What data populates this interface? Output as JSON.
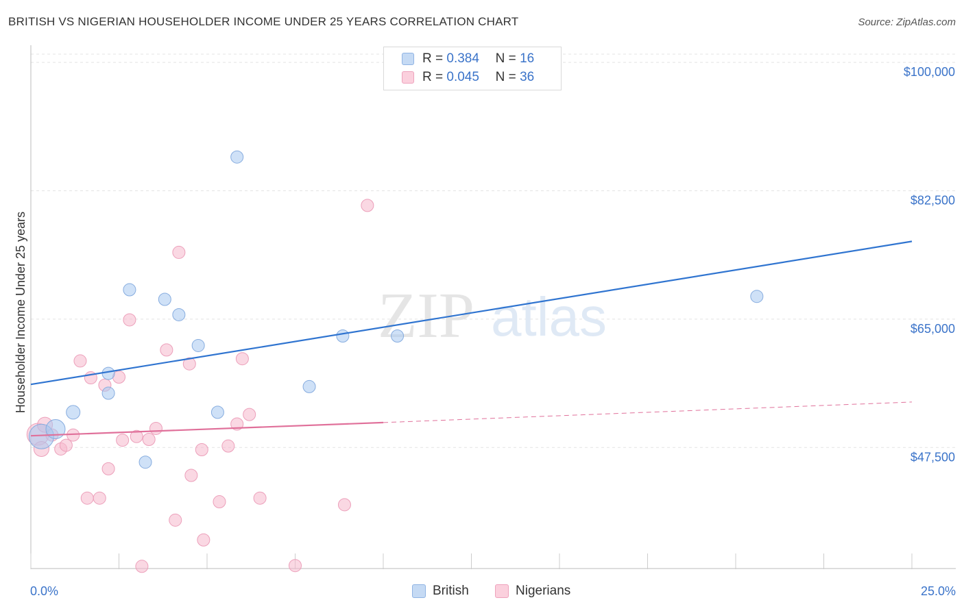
{
  "title": "BRITISH VS NIGERIAN HOUSEHOLDER INCOME UNDER 25 YEARS CORRELATION CHART",
  "source": "Source: ZipAtlas.com",
  "watermark": {
    "zip": "ZIP",
    "atlas": "atlas"
  },
  "legend_top": {
    "rows": [
      {
        "r_label": "R =",
        "r_value": "0.384",
        "n_label": "N =",
        "n_value": "16"
      },
      {
        "r_label": "R =",
        "r_value": "0.045",
        "n_label": "N =",
        "n_value": "36"
      }
    ]
  },
  "legend_bottom": {
    "british": "British",
    "nigerians": "Nigerians"
  },
  "x_axis": {
    "min_label": "0.0%",
    "max_label": "25.0%"
  },
  "chart_data": {
    "type": "scatter",
    "title": "BRITISH VS NIGERIAN HOUSEHOLDER INCOME UNDER 25 YEARS CORRELATION CHART",
    "xlabel": "",
    "ylabel": "Householder Income Under 25 years",
    "xlim": [
      0,
      25
    ],
    "ylim": [
      31000,
      101500
    ],
    "y_ticks": [
      {
        "value": 100000,
        "label": "$100,000"
      },
      {
        "value": 82500,
        "label": "$82,500"
      },
      {
        "value": 65000,
        "label": "$65,000"
      },
      {
        "value": 47500,
        "label": "$47,500"
      }
    ],
    "grid": true,
    "legend_position": "top-center",
    "colors": {
      "british": "#a8c8f0",
      "british_line": "#2f74d0",
      "nigerians": "#f6b8cc",
      "nigerians_line": "#e0709a"
    },
    "series": [
      {
        "name": "British",
        "points": [
          {
            "x": 0.3,
            "y": 49000,
            "r": 18
          },
          {
            "x": 0.7,
            "y": 50000,
            "r": 14
          },
          {
            "x": 1.2,
            "y": 52300,
            "r": 10
          },
          {
            "x": 2.2,
            "y": 54900,
            "r": 9
          },
          {
            "x": 2.2,
            "y": 57600,
            "r": 9
          },
          {
            "x": 2.8,
            "y": 69000,
            "r": 9
          },
          {
            "x": 3.25,
            "y": 45500,
            "r": 9
          },
          {
            "x": 3.8,
            "y": 67700,
            "r": 9
          },
          {
            "x": 4.2,
            "y": 65600,
            "r": 9
          },
          {
            "x": 4.75,
            "y": 61400,
            "r": 9
          },
          {
            "x": 5.3,
            "y": 52300,
            "r": 9
          },
          {
            "x": 5.85,
            "y": 87100,
            "r": 9
          },
          {
            "x": 7.9,
            "y": 55800,
            "r": 9
          },
          {
            "x": 8.85,
            "y": 62700,
            "r": 9
          },
          {
            "x": 10.4,
            "y": 62700,
            "r": 9
          },
          {
            "x": 20.6,
            "y": 68100,
            "r": 9
          }
        ],
        "trend": {
          "x0": 0,
          "y0": 56100,
          "x1": 25,
          "y1": 75600
        }
      },
      {
        "name": "Nigerians",
        "points": [
          {
            "x": 0.2,
            "y": 49300,
            "r": 16
          },
          {
            "x": 0.3,
            "y": 47300,
            "r": 11
          },
          {
            "x": 0.4,
            "y": 50600,
            "r": 11
          },
          {
            "x": 0.6,
            "y": 49200,
            "r": 9
          },
          {
            "x": 0.85,
            "y": 47300,
            "r": 9
          },
          {
            "x": 1.0,
            "y": 47800,
            "r": 9
          },
          {
            "x": 1.2,
            "y": 49200,
            "r": 9
          },
          {
            "x": 1.4,
            "y": 59300,
            "r": 9
          },
          {
            "x": 1.6,
            "y": 40600,
            "r": 9
          },
          {
            "x": 1.7,
            "y": 57000,
            "r": 9
          },
          {
            "x": 1.95,
            "y": 40600,
            "r": 9
          },
          {
            "x": 2.1,
            "y": 56000,
            "r": 9
          },
          {
            "x": 2.2,
            "y": 44600,
            "r": 9
          },
          {
            "x": 2.5,
            "y": 57100,
            "r": 9
          },
          {
            "x": 2.6,
            "y": 48500,
            "r": 9
          },
          {
            "x": 2.8,
            "y": 64900,
            "r": 9
          },
          {
            "x": 3.0,
            "y": 49000,
            "r": 9
          },
          {
            "x": 3.15,
            "y": 31300,
            "r": 9
          },
          {
            "x": 3.35,
            "y": 48600,
            "r": 9
          },
          {
            "x": 3.55,
            "y": 50100,
            "r": 9
          },
          {
            "x": 3.85,
            "y": 60800,
            "r": 9
          },
          {
            "x": 4.1,
            "y": 37600,
            "r": 9
          },
          {
            "x": 4.2,
            "y": 74100,
            "r": 9
          },
          {
            "x": 4.5,
            "y": 58900,
            "r": 9
          },
          {
            "x": 4.55,
            "y": 43700,
            "r": 9
          },
          {
            "x": 4.85,
            "y": 47200,
            "r": 9
          },
          {
            "x": 4.9,
            "y": 34900,
            "r": 9
          },
          {
            "x": 5.35,
            "y": 40100,
            "r": 9
          },
          {
            "x": 5.6,
            "y": 47700,
            "r": 9
          },
          {
            "x": 5.85,
            "y": 50700,
            "r": 9
          },
          {
            "x": 6.0,
            "y": 59600,
            "r": 9
          },
          {
            "x": 6.2,
            "y": 52000,
            "r": 9
          },
          {
            "x": 6.5,
            "y": 40600,
            "r": 9
          },
          {
            "x": 7.5,
            "y": 31400,
            "r": 9
          },
          {
            "x": 8.9,
            "y": 39700,
            "r": 9
          },
          {
            "x": 9.55,
            "y": 80500,
            "r": 9
          }
        ],
        "trend": {
          "x0": 0,
          "y0": 49100,
          "x1": 10,
          "y1": 50900
        },
        "trend_ext": {
          "x0": 10,
          "y0": 50900,
          "x1": 25,
          "y1": 53700
        }
      }
    ]
  }
}
